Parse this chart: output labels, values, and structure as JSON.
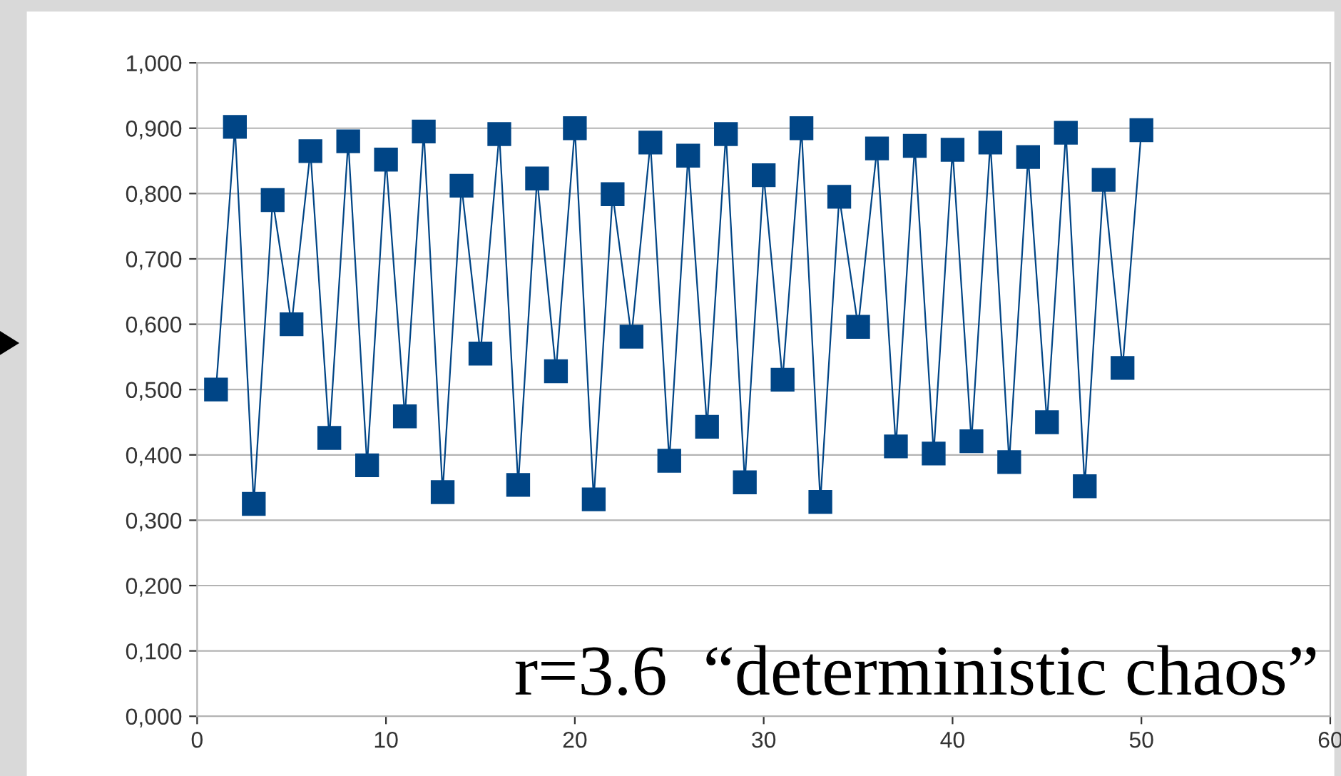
{
  "chart_data": {
    "type": "line",
    "x": [
      1,
      2,
      3,
      4,
      5,
      6,
      7,
      8,
      9,
      10,
      11,
      12,
      13,
      14,
      15,
      16,
      17,
      18,
      19,
      20,
      21,
      22,
      23,
      24,
      25,
      26,
      27,
      28,
      29,
      30,
      31,
      32,
      33,
      34,
      35,
      36,
      37,
      38,
      39,
      40,
      41,
      42,
      43,
      44,
      45,
      46,
      47,
      48,
      49,
      50
    ],
    "series": [
      {
        "color": "#004586",
        "values": [
          0.5,
          0.902,
          0.325,
          0.79,
          0.6,
          0.865,
          0.426,
          0.88,
          0.384,
          0.852,
          0.459,
          0.895,
          0.343,
          0.812,
          0.555,
          0.891,
          0.354,
          0.823,
          0.528,
          0.9,
          0.332,
          0.799,
          0.581,
          0.878,
          0.391,
          0.858,
          0.443,
          0.891,
          0.358,
          0.828,
          0.515,
          0.9,
          0.328,
          0.795,
          0.596,
          0.869,
          0.413,
          0.873,
          0.402,
          0.867,
          0.421,
          0.878,
          0.389,
          0.856,
          0.45,
          0.893,
          0.352,
          0.821,
          0.533,
          0.897
        ]
      }
    ],
    "marker": "square",
    "line_style": "solid",
    "grid": "y",
    "legend": false,
    "xlim": [
      0,
      60
    ],
    "xticks": [
      0,
      10,
      20,
      30,
      40,
      50,
      60
    ],
    "ylim": [
      0,
      1
    ],
    "yticks": [
      {
        "value": 0,
        "label": "0,000"
      },
      {
        "value": 0.1,
        "label": "0,100"
      },
      {
        "value": 0.2,
        "label": "0,200"
      },
      {
        "value": 0.3,
        "label": "0,300"
      },
      {
        "value": 0.4,
        "label": "0,400"
      },
      {
        "value": 0.5,
        "label": "0,500"
      },
      {
        "value": 0.6,
        "label": "0,600"
      },
      {
        "value": 0.7,
        "label": "0,700"
      },
      {
        "value": 0.8,
        "label": "0,800"
      },
      {
        "value": 0.9,
        "label": "0,900"
      },
      {
        "value": 1,
        "label": "1,000"
      }
    ],
    "annotations": [
      "r=3.6  “deterministic chaos”"
    ]
  }
}
